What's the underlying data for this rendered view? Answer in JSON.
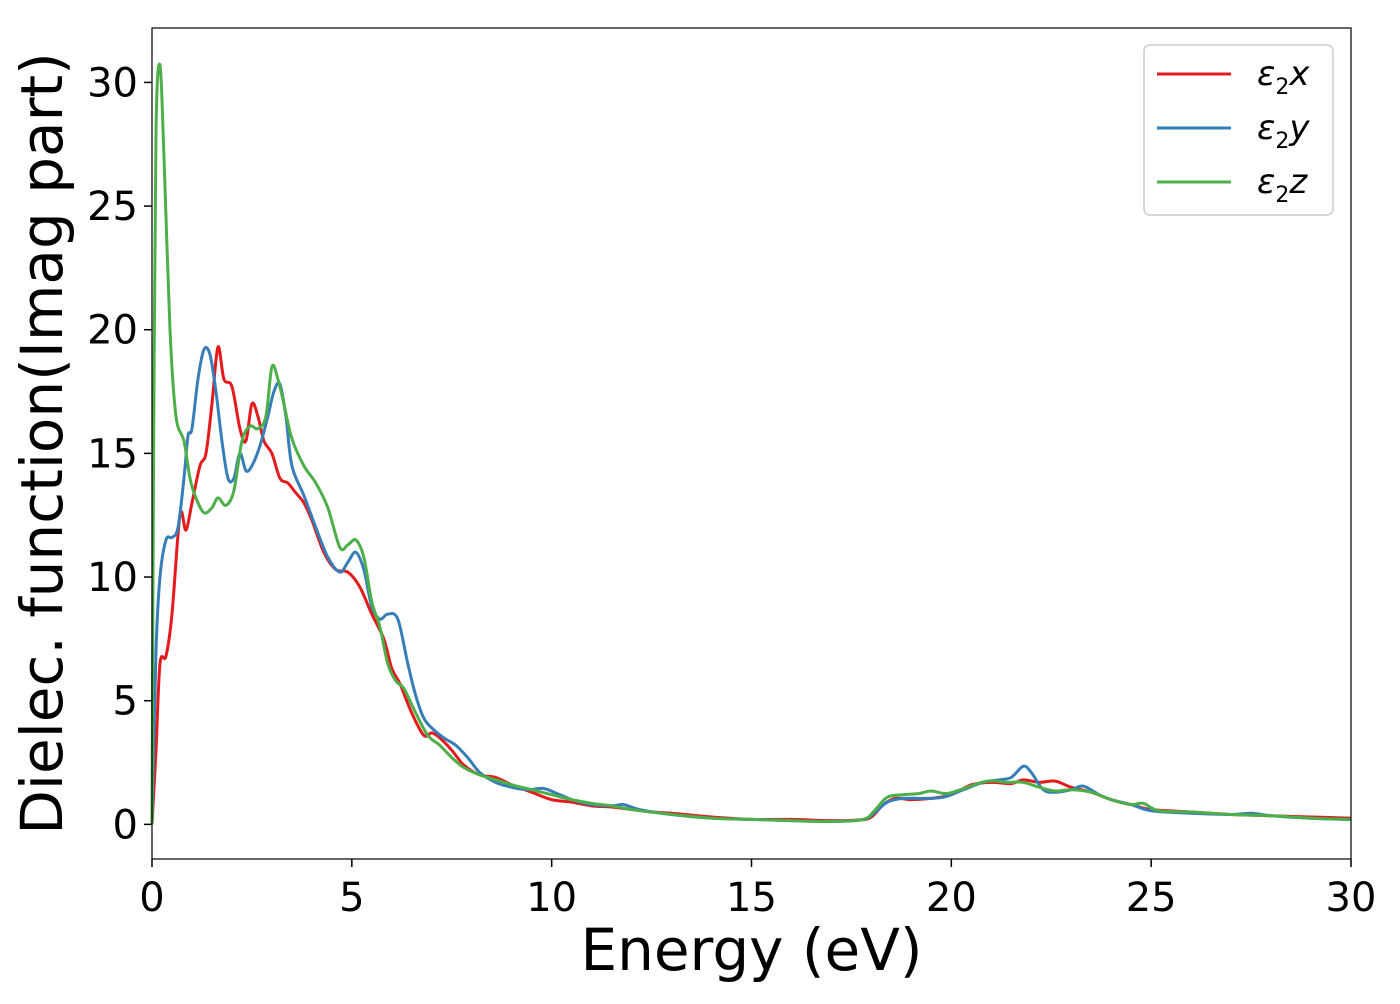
{
  "chart_data": {
    "type": "line",
    "xlabel": "Energy (eV)",
    "ylabel": "Dielec. function(Imag part)",
    "xlim": [
      0,
      30
    ],
    "ylim": [
      -1.4,
      32.2
    ],
    "xticks": [
      "0",
      "5",
      "10",
      "15",
      "20",
      "25",
      "30"
    ],
    "yticks": [
      "0",
      "5",
      "10",
      "15",
      "20",
      "25",
      "30"
    ],
    "grid": false,
    "legend_position": "top-right",
    "series": [
      {
        "name": "ε2x",
        "legend": {
          "symbol": "ε",
          "sub": "2",
          "suffix": "x"
        },
        "color": "#e41a1c",
        "points": [
          [
            0,
            0
          ],
          [
            0.1,
            3
          ],
          [
            0.2,
            6.5
          ],
          [
            0.35,
            6.8
          ],
          [
            0.5,
            8.5
          ],
          [
            0.7,
            12.5
          ],
          [
            0.85,
            11.9
          ],
          [
            1.0,
            13
          ],
          [
            1.2,
            14.5
          ],
          [
            1.35,
            15
          ],
          [
            1.5,
            17
          ],
          [
            1.65,
            19.3
          ],
          [
            1.8,
            18
          ],
          [
            2.0,
            17.7
          ],
          [
            2.2,
            16
          ],
          [
            2.35,
            15.5
          ],
          [
            2.5,
            17
          ],
          [
            2.65,
            16.5
          ],
          [
            2.8,
            15.5
          ],
          [
            3.0,
            15
          ],
          [
            3.2,
            14
          ],
          [
            3.4,
            13.8
          ],
          [
            3.6,
            13.4
          ],
          [
            3.8,
            13
          ],
          [
            4.0,
            12.3
          ],
          [
            4.3,
            11
          ],
          [
            4.6,
            10.3
          ],
          [
            4.9,
            10.2
          ],
          [
            5.2,
            9.6
          ],
          [
            5.5,
            8.5
          ],
          [
            5.8,
            7.5
          ],
          [
            6.0,
            6.3
          ],
          [
            6.2,
            5.7
          ],
          [
            6.5,
            4.5
          ],
          [
            6.8,
            3.6
          ],
          [
            7.0,
            3.7
          ],
          [
            7.2,
            3.5
          ],
          [
            7.5,
            3.0
          ],
          [
            7.8,
            2.4
          ],
          [
            8.2,
            2.0
          ],
          [
            8.6,
            1.9
          ],
          [
            9.0,
            1.6
          ],
          [
            9.5,
            1.3
          ],
          [
            10.0,
            1.0
          ],
          [
            10.5,
            0.9
          ],
          [
            11.0,
            0.75
          ],
          [
            11.5,
            0.7
          ],
          [
            12.0,
            0.6
          ],
          [
            12.5,
            0.5
          ],
          [
            13.0,
            0.45
          ],
          [
            14.0,
            0.3
          ],
          [
            15.0,
            0.2
          ],
          [
            16.0,
            0.2
          ],
          [
            17.0,
            0.15
          ],
          [
            17.7,
            0.18
          ],
          [
            18.0,
            0.3
          ],
          [
            18.3,
            0.8
          ],
          [
            18.6,
            1.05
          ],
          [
            19.0,
            1.0
          ],
          [
            19.5,
            1.05
          ],
          [
            20.0,
            1.2
          ],
          [
            20.5,
            1.6
          ],
          [
            21.0,
            1.7
          ],
          [
            21.5,
            1.65
          ],
          [
            21.8,
            1.8
          ],
          [
            22.2,
            1.7
          ],
          [
            22.6,
            1.75
          ],
          [
            23.0,
            1.5
          ],
          [
            23.5,
            1.3
          ],
          [
            24.0,
            1.0
          ],
          [
            24.5,
            0.8
          ],
          [
            25.0,
            0.6
          ],
          [
            26.0,
            0.5
          ],
          [
            27.0,
            0.4
          ],
          [
            28.0,
            0.35
          ],
          [
            29.0,
            0.3
          ],
          [
            30.0,
            0.25
          ]
        ]
      },
      {
        "name": "ε2y",
        "legend": {
          "symbol": "ε",
          "sub": "2",
          "suffix": "y"
        },
        "color": "#377eb8",
        "points": [
          [
            0,
            0
          ],
          [
            0.1,
            7
          ],
          [
            0.2,
            10
          ],
          [
            0.35,
            11.5
          ],
          [
            0.5,
            11.6
          ],
          [
            0.65,
            12.0
          ],
          [
            0.8,
            14
          ],
          [
            0.9,
            15.7
          ],
          [
            1.0,
            16
          ],
          [
            1.15,
            18
          ],
          [
            1.3,
            19.2
          ],
          [
            1.45,
            19
          ],
          [
            1.6,
            17.5
          ],
          [
            1.75,
            15.5
          ],
          [
            1.9,
            14
          ],
          [
            2.05,
            14
          ],
          [
            2.2,
            15
          ],
          [
            2.35,
            14.3
          ],
          [
            2.5,
            14.5
          ],
          [
            2.7,
            15.3
          ],
          [
            2.9,
            16.5
          ],
          [
            3.05,
            17.5
          ],
          [
            3.2,
            17.8
          ],
          [
            3.35,
            16.5
          ],
          [
            3.5,
            14.5
          ],
          [
            3.8,
            13.3
          ],
          [
            4.1,
            12.0
          ],
          [
            4.4,
            10.8
          ],
          [
            4.7,
            10.2
          ],
          [
            4.9,
            10.6
          ],
          [
            5.1,
            11.0
          ],
          [
            5.3,
            10.3
          ],
          [
            5.5,
            8.8
          ],
          [
            5.7,
            8.3
          ],
          [
            5.9,
            8.5
          ],
          [
            6.15,
            8.3
          ],
          [
            6.4,
            6.5
          ],
          [
            6.6,
            5.2
          ],
          [
            6.8,
            4.3
          ],
          [
            7.0,
            3.9
          ],
          [
            7.3,
            3.5
          ],
          [
            7.6,
            3.2
          ],
          [
            7.9,
            2.7
          ],
          [
            8.2,
            2.1
          ],
          [
            8.6,
            1.7
          ],
          [
            9.0,
            1.5
          ],
          [
            9.4,
            1.4
          ],
          [
            9.8,
            1.45
          ],
          [
            10.2,
            1.2
          ],
          [
            10.6,
            0.95
          ],
          [
            11.0,
            0.8
          ],
          [
            11.5,
            0.75
          ],
          [
            11.8,
            0.8
          ],
          [
            12.2,
            0.6
          ],
          [
            13.0,
            0.4
          ],
          [
            14.0,
            0.25
          ],
          [
            15.0,
            0.2
          ],
          [
            16.0,
            0.15
          ],
          [
            17.0,
            0.12
          ],
          [
            17.8,
            0.2
          ],
          [
            18.1,
            0.5
          ],
          [
            18.4,
            0.9
          ],
          [
            18.8,
            1.05
          ],
          [
            19.3,
            1.05
          ],
          [
            19.8,
            1.1
          ],
          [
            20.3,
            1.4
          ],
          [
            20.8,
            1.7
          ],
          [
            21.2,
            1.8
          ],
          [
            21.5,
            1.9
          ],
          [
            21.8,
            2.35
          ],
          [
            22.0,
            2.1
          ],
          [
            22.3,
            1.4
          ],
          [
            22.6,
            1.3
          ],
          [
            23.0,
            1.4
          ],
          [
            23.3,
            1.55
          ],
          [
            23.7,
            1.2
          ],
          [
            24.0,
            1.0
          ],
          [
            24.5,
            0.8
          ],
          [
            25.0,
            0.55
          ],
          [
            26.0,
            0.45
          ],
          [
            27.0,
            0.4
          ],
          [
            27.5,
            0.45
          ],
          [
            28.0,
            0.35
          ],
          [
            29.0,
            0.25
          ],
          [
            30.0,
            0.2
          ]
        ]
      },
      {
        "name": "ε2z",
        "legend": {
          "symbol": "ε",
          "sub": "2",
          "suffix": "z"
        },
        "color": "#4daf4a",
        "points": [
          [
            0,
            0
          ],
          [
            0.04,
            15
          ],
          [
            0.1,
            28
          ],
          [
            0.2,
            30.7
          ],
          [
            0.3,
            27
          ],
          [
            0.45,
            20
          ],
          [
            0.6,
            16.5
          ],
          [
            0.8,
            15.5
          ],
          [
            0.95,
            14
          ],
          [
            1.1,
            13.2
          ],
          [
            1.3,
            12.6
          ],
          [
            1.5,
            12.8
          ],
          [
            1.65,
            13.2
          ],
          [
            1.85,
            12.9
          ],
          [
            2.05,
            13.5
          ],
          [
            2.25,
            15.5
          ],
          [
            2.45,
            16.1
          ],
          [
            2.65,
            16.0
          ],
          [
            2.85,
            16.5
          ],
          [
            3.0,
            18.5
          ],
          [
            3.15,
            18.0
          ],
          [
            3.3,
            17.0
          ],
          [
            3.5,
            15.6
          ],
          [
            3.8,
            14.5
          ],
          [
            4.1,
            13.8
          ],
          [
            4.4,
            12.8
          ],
          [
            4.7,
            11.2
          ],
          [
            4.9,
            11.3
          ],
          [
            5.1,
            11.5
          ],
          [
            5.3,
            10.8
          ],
          [
            5.5,
            9.0
          ],
          [
            5.7,
            8.0
          ],
          [
            5.9,
            6.5
          ],
          [
            6.1,
            5.8
          ],
          [
            6.3,
            5.5
          ],
          [
            6.6,
            4.5
          ],
          [
            6.9,
            3.6
          ],
          [
            7.2,
            3.2
          ],
          [
            7.5,
            2.7
          ],
          [
            7.8,
            2.3
          ],
          [
            8.2,
            2.0
          ],
          [
            8.6,
            1.8
          ],
          [
            9.0,
            1.6
          ],
          [
            9.5,
            1.4
          ],
          [
            10.0,
            1.2
          ],
          [
            10.5,
            1.0
          ],
          [
            11.0,
            0.85
          ],
          [
            11.5,
            0.75
          ],
          [
            12.0,
            0.6
          ],
          [
            13.0,
            0.4
          ],
          [
            14.0,
            0.25
          ],
          [
            15.0,
            0.2
          ],
          [
            16.0,
            0.15
          ],
          [
            17.0,
            0.12
          ],
          [
            17.8,
            0.2
          ],
          [
            18.1,
            0.6
          ],
          [
            18.4,
            1.1
          ],
          [
            18.8,
            1.2
          ],
          [
            19.2,
            1.25
          ],
          [
            19.5,
            1.35
          ],
          [
            19.9,
            1.25
          ],
          [
            20.4,
            1.5
          ],
          [
            20.9,
            1.75
          ],
          [
            21.4,
            1.7
          ],
          [
            21.8,
            1.7
          ],
          [
            22.2,
            1.5
          ],
          [
            22.6,
            1.35
          ],
          [
            23.0,
            1.4
          ],
          [
            23.5,
            1.3
          ],
          [
            24.0,
            1.0
          ],
          [
            24.5,
            0.8
          ],
          [
            24.8,
            0.85
          ],
          [
            25.2,
            0.55
          ],
          [
            26.0,
            0.5
          ],
          [
            27.0,
            0.4
          ],
          [
            28.0,
            0.35
          ],
          [
            29.0,
            0.25
          ],
          [
            30.0,
            0.2
          ]
        ]
      }
    ]
  }
}
